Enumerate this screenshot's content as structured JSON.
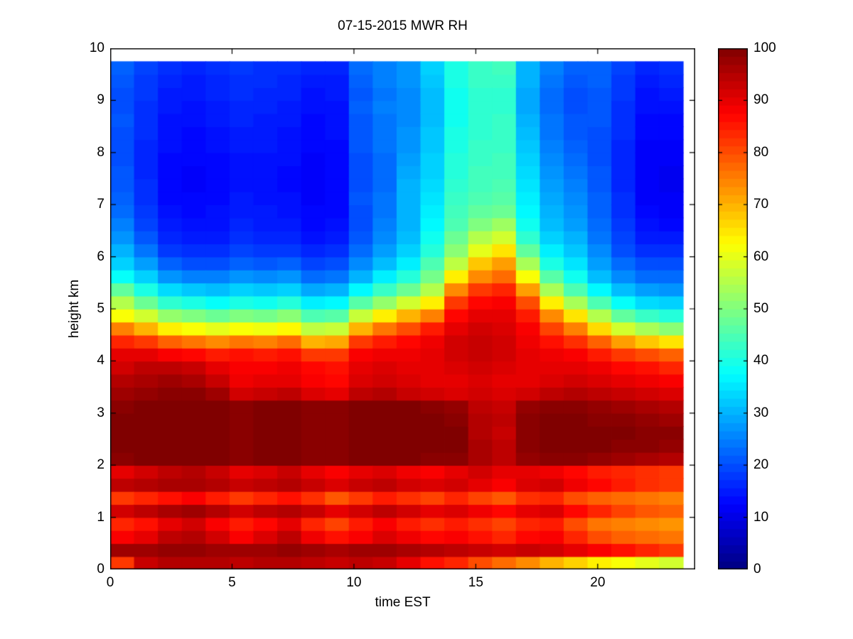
{
  "figure": {
    "background": "#ffffff"
  },
  "chart_data": {
    "type": "heatmap",
    "title": "07-15-2015 MWR RH",
    "xlabel": "time EST",
    "ylabel": "height km",
    "x_axis": {
      "range": [
        0,
        24
      ],
      "ticks": [
        0,
        5,
        10,
        15,
        20
      ]
    },
    "y_axis": {
      "range": [
        0,
        10
      ],
      "ticks": [
        0,
        1,
        2,
        3,
        4,
        5,
        6,
        7,
        8,
        9,
        10
      ]
    },
    "data_x_extent": [
      0,
      23.5
    ],
    "data_y_extent": [
      0,
      9.75
    ],
    "colorbar": {
      "min": 0,
      "max": 100,
      "ticks": [
        0,
        10,
        20,
        30,
        40,
        50,
        60,
        70,
        80,
        90,
        100
      ],
      "steps": 64
    },
    "colormap": {
      "name": "jet",
      "stops": [
        {
          "pos": 0.0,
          "color": "#000080"
        },
        {
          "pos": 0.125,
          "color": "#0000ff"
        },
        {
          "pos": 0.375,
          "color": "#00ffff"
        },
        {
          "pos": 0.625,
          "color": "#ffff00"
        },
        {
          "pos": 0.875,
          "color": "#ff0000"
        },
        {
          "pos": 1.0,
          "color": "#800000"
        }
      ]
    },
    "columns_hours": [
      0,
      1,
      2,
      3,
      4,
      5,
      6,
      7,
      8,
      9,
      10,
      11,
      12,
      13,
      14,
      15,
      16,
      17,
      18,
      19,
      20,
      21,
      22,
      23
    ],
    "row_height_km": 0.25,
    "grid_order": "each inner array is one hour column, values bottom (0 km) to top (9.75 km), RH %",
    "grid": [
      [
        82,
        97,
        88,
        84,
        92,
        82,
        94,
        90,
        99,
        100,
        100,
        100,
        99,
        97,
        95,
        92,
        90,
        84,
        75,
        62,
        55,
        47,
        38,
        33,
        30,
        27,
        25,
        23,
        22,
        21,
        21,
        20,
        20,
        20,
        21,
        20,
        20,
        21,
        22
      ],
      [
        93,
        97,
        90,
        86,
        94,
        84,
        95,
        92,
        100,
        100,
        100,
        100,
        100,
        98,
        96,
        94,
        90,
        82,
        70,
        58,
        48,
        40,
        33,
        28,
        24,
        21,
        19,
        18,
        17,
        17,
        16,
        16,
        16,
        17,
        17,
        17,
        18,
        18,
        19
      ],
      [
        95,
        98,
        94,
        90,
        96,
        86,
        96,
        94,
        100,
        100,
        100,
        100,
        100,
        99,
        97,
        94,
        88,
        78,
        64,
        52,
        42,
        34,
        27,
        22,
        18,
        16,
        15,
        14,
        13,
        13,
        13,
        13,
        14,
        14,
        14,
        15,
        15,
        16,
        17
      ],
      [
        95,
        98,
        95,
        92,
        97,
        88,
        96,
        95,
        100,
        100,
        100,
        100,
        100,
        99,
        96,
        93,
        87,
        76,
        62,
        50,
        40,
        32,
        25,
        20,
        17,
        15,
        14,
        13,
        13,
        12,
        12,
        13,
        13,
        13,
        14,
        14,
        15,
        15,
        16
      ],
      [
        95,
        97,
        92,
        88,
        95,
        85,
        95,
        93,
        100,
        100,
        100,
        100,
        100,
        97,
        93,
        90,
        85,
        74,
        60,
        48,
        38,
        31,
        25,
        20,
        17,
        15,
        14,
        14,
        13,
        13,
        13,
        13,
        14,
        14,
        15,
        15,
        16,
        16,
        17
      ],
      [
        94,
        97,
        88,
        85,
        92,
        82,
        93,
        90,
        99,
        99,
        99,
        99,
        99,
        92,
        89,
        88,
        86,
        76,
        62,
        50,
        40,
        33,
        27,
        22,
        19,
        17,
        16,
        15,
        15,
        14,
        14,
        14,
        15,
        15,
        16,
        16,
        17,
        17,
        18
      ],
      [
        95,
        97,
        91,
        87,
        94,
        84,
        94,
        91,
        100,
        100,
        100,
        100,
        100,
        93,
        90,
        88,
        85,
        75,
        61,
        49,
        39,
        32,
        26,
        21,
        18,
        16,
        15,
        15,
        14,
        14,
        14,
        14,
        15,
        15,
        15,
        16,
        16,
        17,
        17
      ],
      [
        95,
        98,
        94,
        90,
        95,
        86,
        95,
        93,
        100,
        100,
        100,
        100,
        100,
        94,
        90,
        89,
        86,
        77,
        63,
        51,
        41,
        33,
        27,
        22,
        18,
        16,
        15,
        14,
        14,
        13,
        13,
        14,
        14,
        14,
        15,
        15,
        16,
        16,
        17
      ],
      [
        94,
        97,
        89,
        84,
        93,
        83,
        93,
        90,
        99,
        99,
        99,
        99,
        99,
        91,
        88,
        87,
        82,
        70,
        56,
        45,
        36,
        29,
        23,
        19,
        16,
        14,
        13,
        13,
        12,
        12,
        12,
        12,
        13,
        13,
        13,
        14,
        14,
        15,
        16
      ],
      [
        93,
        96,
        86,
        81,
        90,
        79,
        91,
        88,
        99,
        99,
        99,
        99,
        99,
        90,
        87,
        86,
        82,
        71,
        57,
        46,
        37,
        30,
        24,
        20,
        17,
        15,
        14,
        13,
        13,
        13,
        13,
        13,
        13,
        14,
        14,
        14,
        15,
        15,
        16
      ],
      [
        94,
        97,
        88,
        85,
        92,
        82,
        93,
        90,
        100,
        100,
        100,
        100,
        100,
        94,
        91,
        90,
        88,
        82,
        70,
        57,
        46,
        37,
        30,
        26,
        23,
        21,
        20,
        20,
        21,
        20,
        20,
        20,
        21,
        21,
        21,
        22,
        21,
        22,
        23
      ],
      [
        93,
        97,
        91,
        88,
        94,
        85,
        94,
        91,
        100,
        100,
        100,
        100,
        100,
        95,
        92,
        91,
        89,
        85,
        76,
        64,
        52,
        43,
        36,
        31,
        28,
        26,
        25,
        24,
        24,
        23,
        23,
        23,
        24,
        24,
        24,
        25,
        24,
        25,
        25
      ],
      [
        90,
        96,
        89,
        85,
        92,
        83,
        92,
        89,
        100,
        100,
        100,
        100,
        100,
        93,
        91,
        90,
        89,
        87,
        80,
        70,
        58,
        48,
        41,
        36,
        33,
        31,
        30,
        30,
        30,
        30,
        29,
        28,
        27,
        27,
        26,
        26,
        26,
        27,
        27
      ],
      [
        86,
        95,
        87,
        83,
        90,
        81,
        91,
        88,
        99,
        100,
        100,
        100,
        99,
        92,
        90,
        90,
        90,
        89,
        85,
        75,
        64,
        55,
        49,
        45,
        41,
        39,
        37,
        36,
        35,
        34,
        33,
        33,
        32,
        32,
        31,
        31,
        31,
        32,
        33
      ],
      [
        84,
        94,
        88,
        85,
        91,
        84,
        92,
        90,
        99,
        100,
        100,
        99,
        98,
        91,
        90,
        91,
        92,
        92,
        90,
        87,
        82,
        74,
        64,
        56,
        51,
        48,
        45,
        44,
        43,
        42,
        41,
        41,
        40,
        40,
        39,
        39,
        39,
        40,
        40
      ],
      [
        80,
        93,
        86,
        83,
        89,
        81,
        90,
        92,
        96,
        96,
        95,
        95,
        94,
        92,
        91,
        92,
        93,
        93,
        92,
        90,
        87,
        82,
        74,
        68,
        60,
        55,
        50,
        47,
        45,
        44,
        44,
        43,
        43,
        42,
        42,
        42,
        42,
        43,
        43
      ],
      [
        77,
        92,
        84,
        81,
        87,
        79,
        88,
        90,
        94,
        94,
        93,
        94,
        93,
        91,
        90,
        91,
        92,
        92,
        91,
        90,
        88,
        84,
        77,
        72,
        65,
        58,
        53,
        48,
        46,
        45,
        44,
        44,
        43,
        43,
        43,
        42,
        42,
        43,
        44
      ],
      [
        74,
        93,
        87,
        84,
        90,
        83,
        91,
        90,
        98,
        99,
        99,
        99,
        98,
        92,
        90,
        90,
        90,
        89,
        88,
        85,
        80,
        72,
        62,
        54,
        47,
        42,
        39,
        37,
        36,
        35,
        34,
        33,
        32,
        31,
        30,
        29,
        29,
        30,
        30
      ],
      [
        70,
        92,
        88,
        85,
        91,
        84,
        92,
        89,
        99,
        100,
        100,
        100,
        99,
        94,
        91,
        90,
        89,
        86,
        81,
        74,
        64,
        54,
        46,
        40,
        36,
        33,
        31,
        30,
        29,
        28,
        27,
        26,
        25,
        24,
        24,
        23,
        23,
        24,
        25
      ],
      [
        67,
        90,
        84,
        80,
        87,
        80,
        89,
        87,
        99,
        100,
        100,
        100,
        99,
        95,
        92,
        90,
        88,
        83,
        75,
        65,
        54,
        45,
        39,
        35,
        32,
        30,
        28,
        27,
        26,
        25,
        24,
        23,
        22,
        21,
        21,
        20,
        20,
        21,
        22
      ],
      [
        64,
        88,
        80,
        76,
        84,
        78,
        87,
        85,
        98,
        100,
        100,
        99,
        98,
        94,
        91,
        89,
        85,
        78,
        66,
        55,
        45,
        37,
        31,
        28,
        26,
        24,
        23,
        22,
        22,
        21,
        21,
        20,
        20,
        20,
        21,
        21,
        21,
        22,
        22
      ],
      [
        62,
        86,
        78,
        75,
        81,
        77,
        85,
        84,
        97,
        99,
        100,
        99,
        97,
        93,
        90,
        87,
        82,
        72,
        58,
        47,
        38,
        31,
        26,
        23,
        20,
        19,
        18,
        17,
        17,
        16,
        16,
        16,
        16,
        17,
        17,
        17,
        18,
        18,
        19
      ],
      [
        60,
        84,
        77,
        74,
        79,
        76,
        83,
        83,
        96,
        99,
        99,
        98,
        96,
        92,
        89,
        86,
        80,
        68,
        54,
        43,
        34,
        28,
        23,
        20,
        17,
        15,
        14,
        13,
        12,
        12,
        12,
        12,
        12,
        13,
        13,
        14,
        14,
        15,
        16
      ],
      [
        58,
        82,
        76,
        73,
        78,
        75,
        82,
        82,
        95,
        98,
        99,
        97,
        95,
        91,
        88,
        84,
        78,
        65,
        51,
        41,
        33,
        27,
        23,
        20,
        17,
        15,
        13,
        12,
        12,
        11,
        11,
        12,
        12,
        13,
        13,
        14,
        15,
        16,
        17
      ]
    ]
  }
}
